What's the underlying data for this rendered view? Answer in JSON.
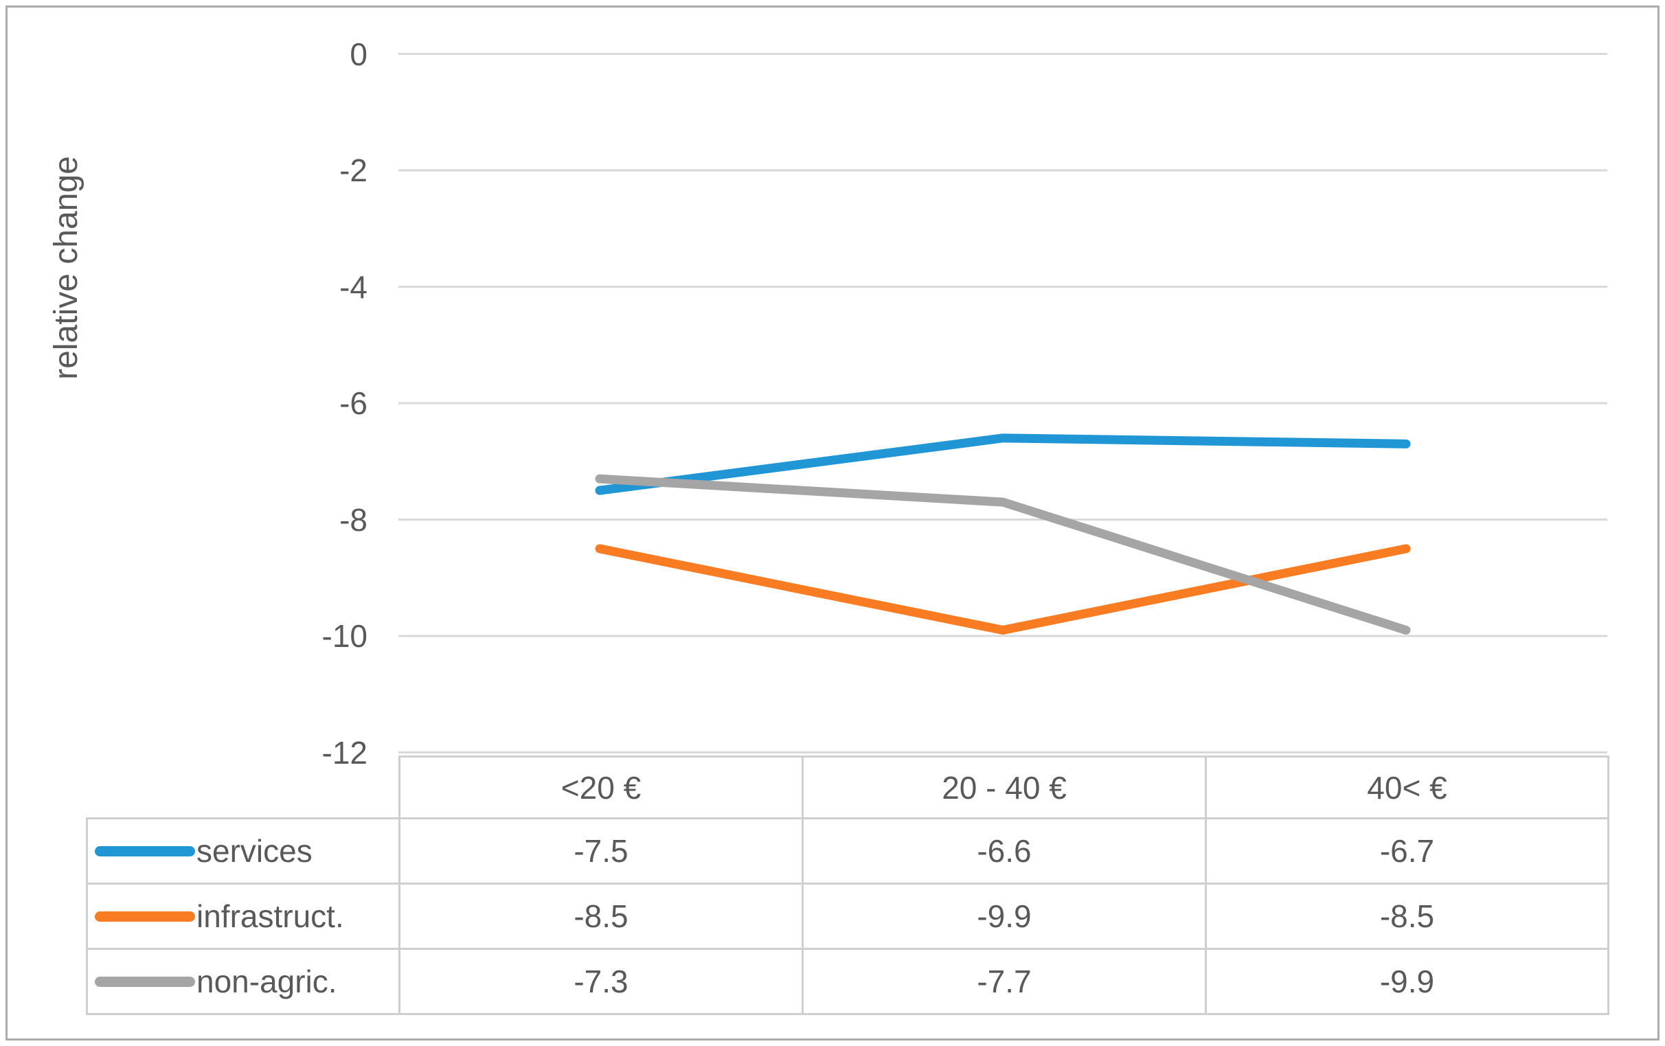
{
  "figure": {
    "border_color": "#ABABAB",
    "background_color": "#FFFFFF"
  },
  "chart_data": {
    "type": "line",
    "title": "",
    "xlabel": "",
    "ylabel": "relative change",
    "categories": [
      "<20 €",
      "20 - 40 €",
      "40< €"
    ],
    "series": [
      {
        "name": "services",
        "values": [
          -7.5,
          -6.6,
          -6.7
        ],
        "color": "#2196D5"
      },
      {
        "name": "infrastruct.",
        "values": [
          -8.5,
          -9.9,
          -8.5
        ],
        "color": "#F97B22"
      },
      {
        "name": "non-agric.",
        "values": [
          -7.3,
          -7.7,
          -9.9
        ],
        "color": "#A5A5A5"
      }
    ],
    "yticks": [
      "0",
      "-2",
      "-4",
      "-6",
      "-8",
      "-10",
      "-12"
    ],
    "ylim": [
      -12,
      0
    ],
    "grid": "horizontal",
    "gridline_color": "#D9D9D9",
    "text_color": "#595959",
    "legend_position": "table-left",
    "data_table_shown": true
  }
}
